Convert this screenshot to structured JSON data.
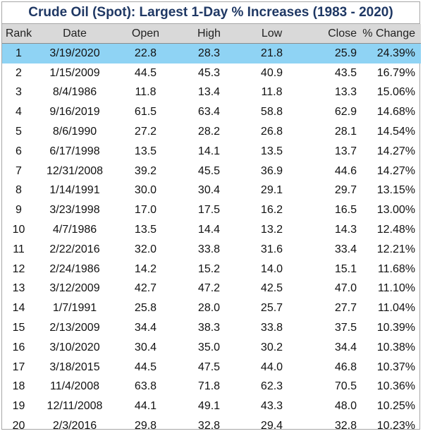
{
  "title": "Crude Oil (Spot): Largest 1-Day % Increases (1983 - 2020)",
  "columns": [
    "Rank",
    "Date",
    "Open",
    "High",
    "Low",
    "Close",
    "% Change"
  ],
  "rows": [
    [
      "1",
      "3/19/2020",
      "22.8",
      "28.3",
      "21.8",
      "25.9",
      "24.39%"
    ],
    [
      "2",
      "1/15/2009",
      "44.5",
      "45.3",
      "40.9",
      "43.5",
      "16.79%"
    ],
    [
      "3",
      "8/4/1986",
      "11.8",
      "13.4",
      "11.8",
      "13.3",
      "15.06%"
    ],
    [
      "4",
      "9/16/2019",
      "61.5",
      "63.4",
      "58.8",
      "62.9",
      "14.68%"
    ],
    [
      "5",
      "8/6/1990",
      "27.2",
      "28.2",
      "26.8",
      "28.1",
      "14.54%"
    ],
    [
      "6",
      "6/17/1998",
      "13.5",
      "14.1",
      "13.5",
      "13.7",
      "14.27%"
    ],
    [
      "7",
      "12/31/2008",
      "39.2",
      "45.5",
      "36.9",
      "44.6",
      "14.27%"
    ],
    [
      "8",
      "1/14/1991",
      "30.0",
      "30.4",
      "29.1",
      "29.7",
      "13.15%"
    ],
    [
      "9",
      "3/23/1998",
      "17.0",
      "17.5",
      "16.2",
      "16.5",
      "13.00%"
    ],
    [
      "10",
      "4/7/1986",
      "13.5",
      "14.4",
      "13.2",
      "14.3",
      "12.48%"
    ],
    [
      "11",
      "2/22/2016",
      "32.0",
      "33.8",
      "31.6",
      "33.4",
      "12.21%"
    ],
    [
      "12",
      "2/24/1986",
      "14.2",
      "15.2",
      "14.0",
      "15.1",
      "11.68%"
    ],
    [
      "13",
      "3/12/2009",
      "42.7",
      "47.2",
      "42.5",
      "47.0",
      "11.10%"
    ],
    [
      "14",
      "1/7/1991",
      "25.8",
      "28.0",
      "25.7",
      "27.7",
      "11.04%"
    ],
    [
      "15",
      "2/13/2009",
      "34.4",
      "38.3",
      "33.8",
      "37.5",
      "10.39%"
    ],
    [
      "16",
      "3/10/2020",
      "30.4",
      "35.0",
      "30.2",
      "34.4",
      "10.38%"
    ],
    [
      "17",
      "3/18/2015",
      "44.5",
      "47.5",
      "44.0",
      "46.8",
      "10.37%"
    ],
    [
      "18",
      "11/4/2008",
      "63.8",
      "71.8",
      "62.3",
      "70.5",
      "10.36%"
    ],
    [
      "19",
      "12/11/2008",
      "44.1",
      "49.1",
      "43.3",
      "48.0",
      "10.25%"
    ],
    [
      "20",
      "2/3/2016",
      "29.8",
      "32.8",
      "29.4",
      "32.8",
      "10.23%"
    ]
  ],
  "highlight_row": 1,
  "colors": {
    "title": "#1f3864",
    "header_bg": "#d9d9d9",
    "highlight_bg": "#8fd3f4"
  }
}
